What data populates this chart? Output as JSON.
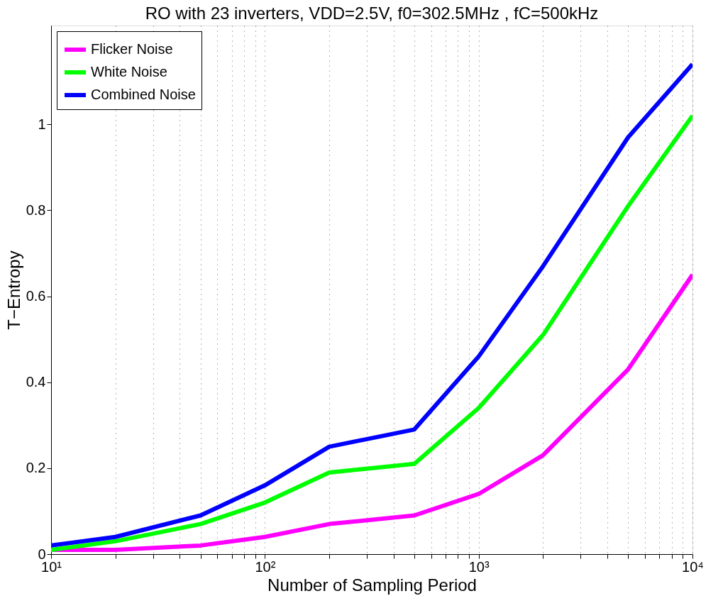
{
  "chart_data": {
    "type": "line",
    "title": "RO with 23 inverters, VDD=2.5V, f0=302.5MHz , fC=500kHz",
    "xlabel": "Number of Sampling Period",
    "ylabel": "T−Entropy",
    "x": [
      10,
      20,
      50,
      100,
      200,
      500,
      1000,
      2000,
      5000,
      10000
    ],
    "series": [
      {
        "name": "Flicker Noise",
        "color": "#ff00ff",
        "values": [
          0.01,
          0.01,
          0.02,
          0.04,
          0.07,
          0.09,
          0.14,
          0.23,
          0.43,
          0.65
        ]
      },
      {
        "name": "White Noise",
        "color": "#00ff00",
        "values": [
          0.01,
          0.03,
          0.07,
          0.12,
          0.19,
          0.21,
          0.34,
          0.51,
          0.81,
          1.02
        ]
      },
      {
        "name": "Combined Noise",
        "color": "#0000ff",
        "values": [
          0.02,
          0.04,
          0.09,
          0.16,
          0.25,
          0.29,
          0.46,
          0.67,
          0.97,
          1.14
        ]
      }
    ],
    "log": "x",
    "xlim": [
      10,
      10000
    ],
    "xticks": [
      {
        "value": 10,
        "label": "10¹"
      },
      {
        "value": 20,
        "label": null
      },
      {
        "value": 30,
        "label": null
      },
      {
        "value": 40,
        "label": null
      },
      {
        "value": 50,
        "label": null
      },
      {
        "value": 60,
        "label": null
      },
      {
        "value": 70,
        "label": null
      },
      {
        "value": 80,
        "label": null
      },
      {
        "value": 90,
        "label": null
      },
      {
        "value": 100,
        "label": "10²"
      },
      {
        "value": 200,
        "label": null
      },
      {
        "value": 300,
        "label": null
      },
      {
        "value": 400,
        "label": null
      },
      {
        "value": 500,
        "label": null
      },
      {
        "value": 600,
        "label": null
      },
      {
        "value": 700,
        "label": null
      },
      {
        "value": 800,
        "label": null
      },
      {
        "value": 900,
        "label": null
      },
      {
        "value": 1000,
        "label": "10³"
      },
      {
        "value": 2000,
        "label": null
      },
      {
        "value": 3000,
        "label": null
      },
      {
        "value": 4000,
        "label": null
      },
      {
        "value": 5000,
        "label": null
      },
      {
        "value": 6000,
        "label": null
      },
      {
        "value": 7000,
        "label": null
      },
      {
        "value": 8000,
        "label": null
      },
      {
        "value": 9000,
        "label": null
      },
      {
        "value": 10000,
        "label": "10⁴"
      }
    ],
    "ylim": [
      0,
      1.23
    ],
    "yticks": [
      0,
      0.2,
      0.4,
      0.6,
      0.8,
      1
    ],
    "grid": "x",
    "legend": "top left",
    "marker": "none",
    "line_style": "solid"
  }
}
